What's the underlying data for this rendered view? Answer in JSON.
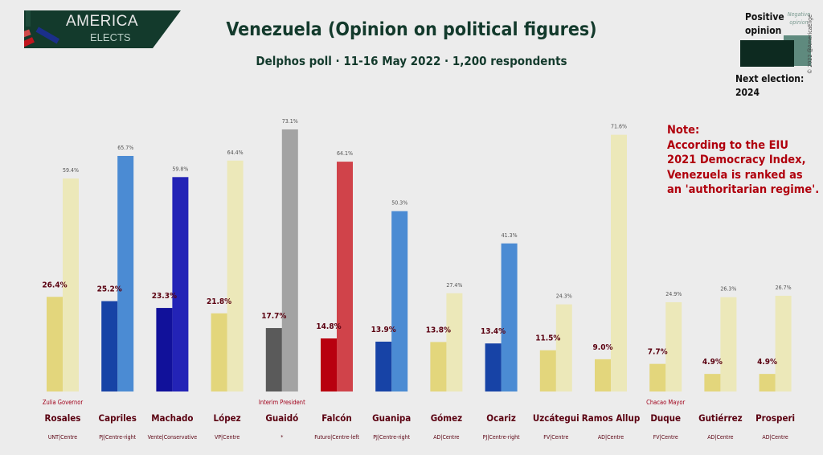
{
  "header": {
    "logo_line1": "AMERICA",
    "logo_line2": "ELECTS",
    "title": "Venezuela (Opinion on political figures)",
    "subtitle": "Delphos poll · 11-16 May 2022 · 1,200 respondents"
  },
  "legend": {
    "positive_label": "Positive opinion",
    "negative_label": "Negative opinion",
    "positive_color": "#0d2a20",
    "negative_color": "#5f8a7e",
    "copyright": "© 2022 @AmericaElige",
    "next_election": "Next election:",
    "next_election_year": "2024"
  },
  "note": {
    "lines": [
      "Note:",
      "According to the EIU",
      "2021 Democracy Index,",
      "Venezuela is ranked as",
      "an 'authoritarian regime'."
    ]
  },
  "chart_data": {
    "type": "bar",
    "title": "Venezuela (Opinion on political figures)",
    "ylim": [
      0,
      75
    ],
    "grid": false,
    "legend_position": "top-right",
    "categories": [
      "Rosales",
      "Capriles",
      "Machado",
      "López",
      "Guaidó",
      "Falcón",
      "Guanipa",
      "Gómez",
      "Ocariz",
      "Uzcátegui",
      "Ramos Allup",
      "Duque",
      "Gutiérrez",
      "Prosperi"
    ],
    "parties": [
      "UNT|Centre",
      "PJ|Centre-right",
      "Vente|Conservative",
      "VP|Centre",
      "*",
      "Futuro|Centre-left",
      "PJ|Centre-right",
      "AD|Centre",
      "PJ|Centre-right",
      "FV|Centre",
      "AD|Centre",
      "FV|Centre",
      "AD|Centre",
      "AD|Centre"
    ],
    "roles": [
      "Zulia Governor",
      "",
      "",
      "",
      "Interim President",
      "",
      "",
      "",
      "",
      "",
      "",
      "Chacao Mayor",
      "",
      ""
    ],
    "series": [
      {
        "name": "Positive opinion",
        "values": [
          26.4,
          25.2,
          23.3,
          21.8,
          17.7,
          14.8,
          13.9,
          13.8,
          13.4,
          11.5,
          9.0,
          7.7,
          4.9,
          4.9
        ],
        "labels": [
          "26.4%",
          "25.2%",
          "23.3%",
          "21.8%",
          "17.7%",
          "14.8%",
          "13.9%",
          "13.8%",
          "13.4%",
          "11.5%",
          "9.0%",
          "7.7%",
          "4.9%",
          "4.9%"
        ]
      },
      {
        "name": "Negative opinion",
        "values": [
          59.4,
          65.7,
          59.8,
          64.4,
          73.1,
          64.1,
          50.3,
          27.4,
          41.3,
          24.3,
          71.6,
          24.9,
          26.3,
          26.7
        ],
        "labels": [
          "59.4%",
          "65.7%",
          "59.8%",
          "64.4%",
          "73.1%",
          "64.1%",
          "50.3%",
          "27.4%",
          "41.3%",
          "24.3%",
          "71.6%",
          "24.9%",
          "26.3%",
          "26.7%"
        ]
      }
    ],
    "colors_positive": [
      "#e3d67c",
      "#1743a6",
      "#11119a",
      "#e3d67c",
      "#5a5a5a",
      "#b8000f",
      "#1743a6",
      "#e3d67c",
      "#1743a6",
      "#e3d67c",
      "#e3d67c",
      "#e3d67c",
      "#e3d67c",
      "#e3d67c"
    ],
    "colors_negative": [
      "#ece8b9",
      "#4b8bd3",
      "#2323b6",
      "#ece8b9",
      "#a3a3a3",
      "#d0434a",
      "#4b8bd3",
      "#ece8b9",
      "#4b8bd3",
      "#ece8b9",
      "#ece8b9",
      "#ece8b9",
      "#ece8b9",
      "#ece8b9"
    ]
  }
}
